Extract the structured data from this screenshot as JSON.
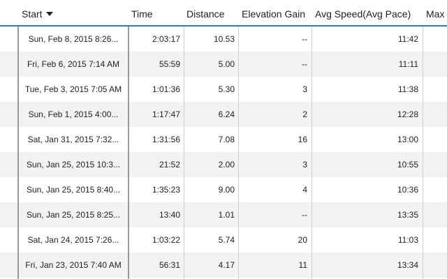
{
  "table": {
    "headers": {
      "start": "Start",
      "time": "Time",
      "distance": "Distance",
      "elevation": "Elevation Gain",
      "speed": "Avg Speed(Avg Pace)",
      "max": "Max"
    },
    "sort": {
      "column": "start",
      "direction": "descending"
    },
    "rows": [
      {
        "start": "Sun, Feb 8, 2015 8:26...",
        "time": "2:03:17",
        "distance": "10.53",
        "elevation": "--",
        "speed": "11:42"
      },
      {
        "start": "Fri, Feb 6, 2015 7:14 AM",
        "time": "55:59",
        "distance": "5.00",
        "elevation": "--",
        "speed": "11:11"
      },
      {
        "start": "Tue, Feb 3, 2015 7:05 AM",
        "time": "1:01:36",
        "distance": "5.30",
        "elevation": "3",
        "speed": "11:38"
      },
      {
        "start": "Sun, Feb 1, 2015 4:00...",
        "time": "1:17:47",
        "distance": "6.24",
        "elevation": "2",
        "speed": "12:28"
      },
      {
        "start": "Sat, Jan 31, 2015 7:32...",
        "time": "1:31:56",
        "distance": "7.08",
        "elevation": "16",
        "speed": "13:00"
      },
      {
        "start": "Sun, Jan 25, 2015 10:3...",
        "time": "21:52",
        "distance": "2.00",
        "elevation": "3",
        "speed": "10:55"
      },
      {
        "start": "Sun, Jan 25, 2015 8:40...",
        "time": "1:35:23",
        "distance": "9.00",
        "elevation": "4",
        "speed": "10:36"
      },
      {
        "start": "Sun, Jan 25, 2015 8:25...",
        "time": "13:40",
        "distance": "1.01",
        "elevation": "--",
        "speed": "13:35"
      },
      {
        "start": "Sat, Jan 24, 2015 7:26...",
        "time": "1:03:22",
        "distance": "5.74",
        "elevation": "20",
        "speed": "11:03"
      },
      {
        "start": "Fri, Jan 23, 2015 7:40 AM",
        "time": "56:31",
        "distance": "4.17",
        "elevation": "11",
        "speed": "13:34"
      }
    ]
  },
  "colors": {
    "header_underline": "#2a7fc1",
    "row_alt": "#f2f2f2",
    "divider": "#cfcfcf"
  }
}
